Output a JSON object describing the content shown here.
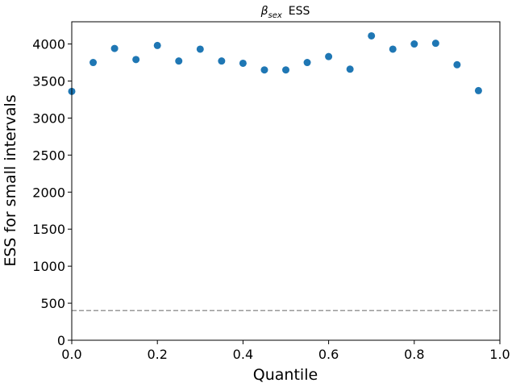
{
  "chart_data": {
    "type": "scatter",
    "title_symbol": "β",
    "title_subscript": "sex",
    "title_suffix": "ESS",
    "xlabel": "Quantile",
    "ylabel": "ESS for small intervals",
    "xlim": [
      0.0,
      1.0
    ],
    "ylim": [
      0,
      4300
    ],
    "x_ticks": [
      0.0,
      0.2,
      0.4,
      0.6,
      0.8,
      1.0
    ],
    "x_tick_labels": [
      "0.0",
      "0.2",
      "0.4",
      "0.6",
      "0.8",
      "1.0"
    ],
    "y_ticks": [
      0,
      500,
      1000,
      1500,
      2000,
      2500,
      3000,
      3500,
      4000
    ],
    "y_tick_labels": [
      "0",
      "500",
      "1000",
      "1500",
      "2000",
      "2500",
      "3000",
      "3500",
      "4000"
    ],
    "grid": false,
    "series": [
      {
        "x": [
          0.0,
          0.05,
          0.1,
          0.15,
          0.2,
          0.25,
          0.3,
          0.35,
          0.4,
          0.45,
          0.5,
          0.55,
          0.6,
          0.65,
          0.7,
          0.75,
          0.8,
          0.85,
          0.9,
          0.95
        ],
        "y": [
          3360,
          3750,
          3940,
          3790,
          3980,
          3770,
          3930,
          3770,
          3740,
          3650,
          3650,
          3750,
          3830,
          3660,
          4110,
          3930,
          4000,
          4010,
          3720,
          3370
        ],
        "color": "#1f77b4"
      }
    ],
    "reference_line": {
      "y": 400,
      "style": "dashed",
      "color": "#999999"
    }
  }
}
